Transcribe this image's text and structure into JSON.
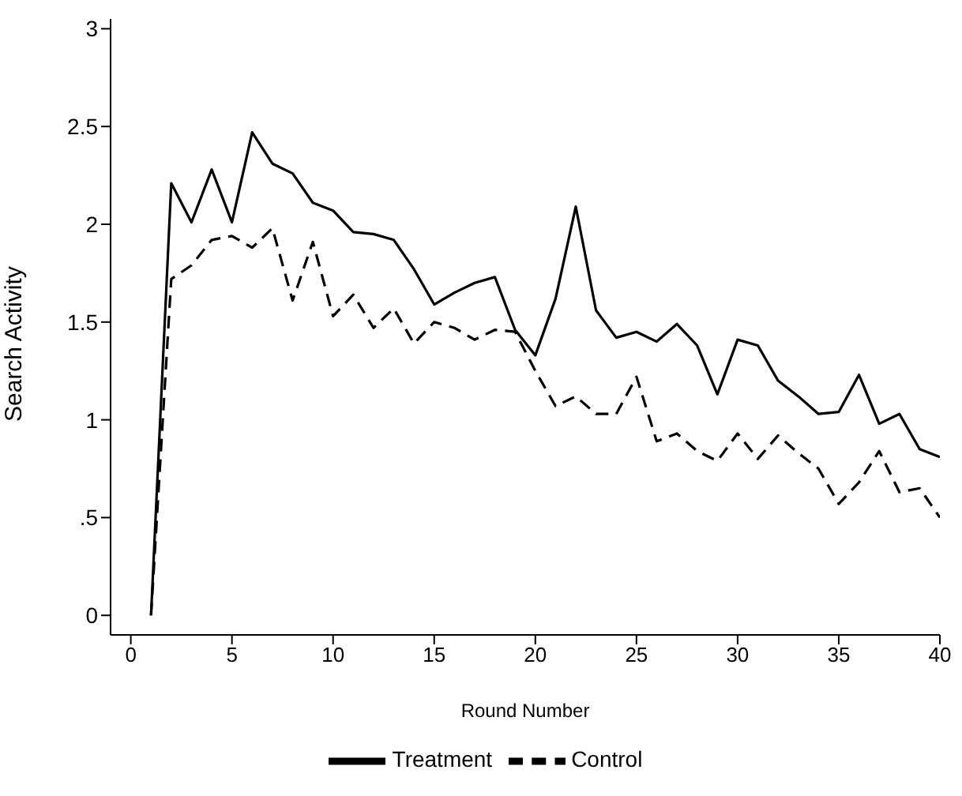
{
  "chart_data": {
    "type": "line",
    "xlabel": "Round Number",
    "ylabel": "Search Activity",
    "x": [
      1,
      2,
      3,
      4,
      5,
      6,
      7,
      8,
      9,
      10,
      11,
      12,
      13,
      14,
      15,
      16,
      17,
      18,
      19,
      20,
      21,
      22,
      23,
      24,
      25,
      26,
      27,
      28,
      29,
      30,
      31,
      32,
      33,
      34,
      35,
      36,
      37,
      38,
      39,
      40
    ],
    "series": [
      {
        "name": "Treatment",
        "color": "#000000",
        "line_style": "solid",
        "values": [
          0,
          2.21,
          2.01,
          2.28,
          2.01,
          2.47,
          2.31,
          2.26,
          2.11,
          2.07,
          1.96,
          1.95,
          1.92,
          1.77,
          1.59,
          1.65,
          1.7,
          1.73,
          1.46,
          1.33,
          1.62,
          2.09,
          1.56,
          1.42,
          1.45,
          1.4,
          1.49,
          1.38,
          1.13,
          1.41,
          1.38,
          1.2,
          1.12,
          1.03,
          1.04,
          1.23,
          0.98,
          1.03,
          0.85,
          0.81
        ]
      },
      {
        "name": "Control",
        "color": "#000000",
        "line_style": "dashed",
        "values": [
          0,
          1.72,
          1.79,
          1.92,
          1.94,
          1.88,
          1.98,
          1.61,
          1.91,
          1.53,
          1.64,
          1.47,
          1.57,
          1.39,
          1.5,
          1.47,
          1.41,
          1.46,
          1.45,
          1.25,
          1.07,
          1.12,
          1.03,
          1.03,
          1.22,
          0.89,
          0.93,
          0.84,
          0.79,
          0.93,
          0.8,
          0.92,
          0.83,
          0.75,
          0.57,
          0.68,
          0.84,
          0.63,
          0.65,
          0.5
        ]
      }
    ],
    "xlim": [
      -1,
      40
    ],
    "xticks": [
      0,
      5,
      10,
      15,
      20,
      25,
      30,
      35,
      40
    ],
    "ylim": [
      -0.1,
      3.05
    ],
    "yticks": [
      0,
      {
        "value": 0.5,
        "label": ".5"
      },
      1,
      1.5,
      2,
      2.5,
      3
    ],
    "grid": false,
    "legend": "bottom",
    "marker": "none"
  }
}
